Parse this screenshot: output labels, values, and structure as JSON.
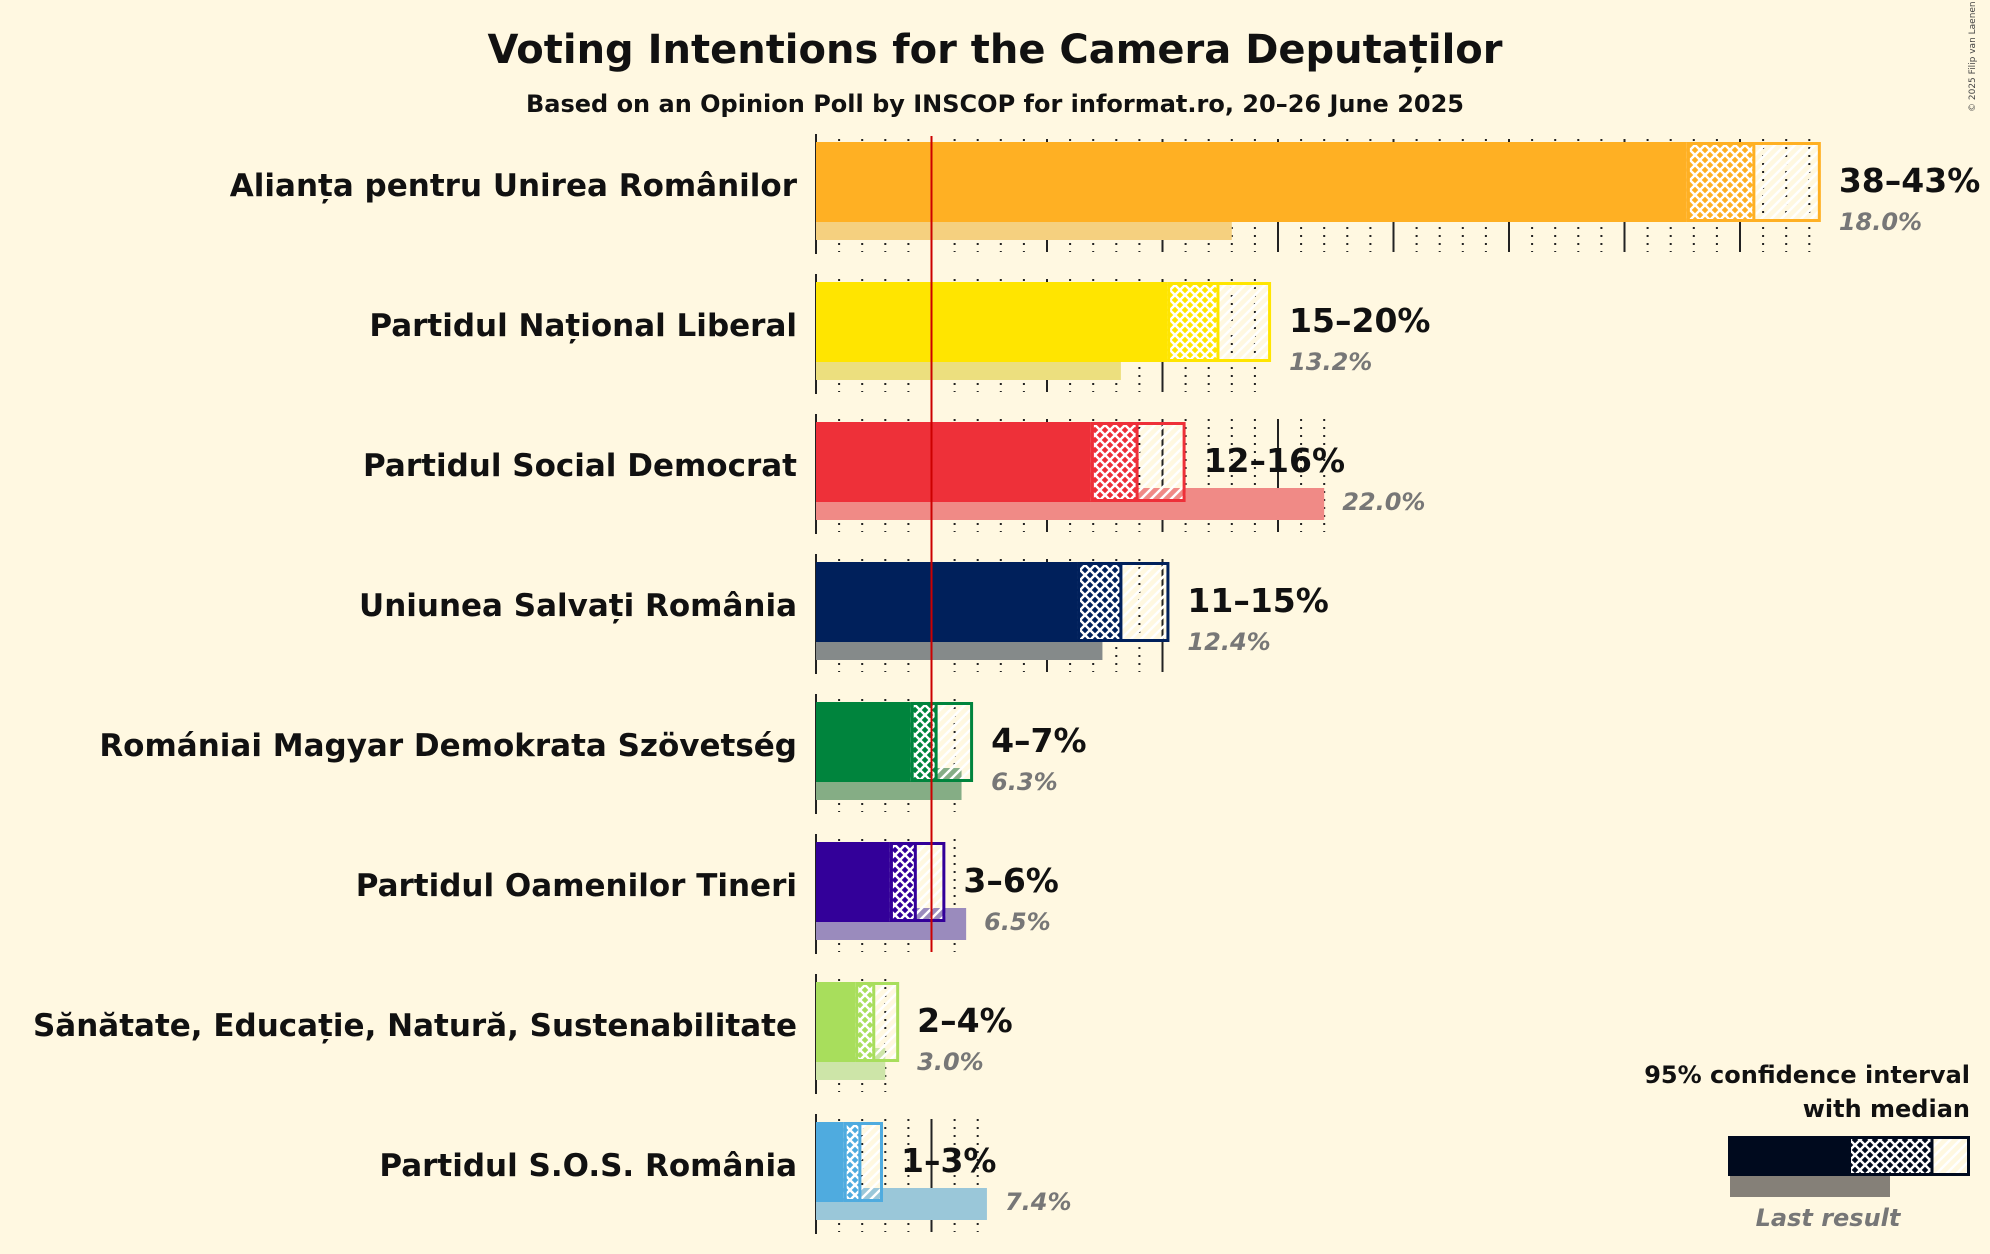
{
  "copyright": "© 2025 Filip van Laenen",
  "chart_data": {
    "type": "bar",
    "orientation": "horizontal",
    "title": "Voting Intentions for the Camera Deputaților",
    "subtitle": "Based on an Opinion Poll by INSCOP for informat.ro, 20–26 June 2025",
    "xlim": [
      0,
      45
    ],
    "threshold": 5,
    "threshold_color": "#cc0000",
    "parties": [
      {
        "name": "Alianța pentru Unirea Românilor",
        "color": "#ffb023",
        "last_color": "#f5d07f",
        "ci_low": 37.7,
        "median": 40.6,
        "ci_high": 43.5,
        "range_label": "38–43%",
        "last_result": 18.0,
        "last_label": "18.0%"
      },
      {
        "name": "Partidul Național Liberal",
        "color": "#ffe500",
        "last_color": "#ecdf7e",
        "ci_low": 15.2,
        "median": 17.4,
        "ci_high": 19.7,
        "range_label": "15–20%",
        "last_result": 13.2,
        "last_label": "13.2%"
      },
      {
        "name": "Partidul Social Democrat",
        "color": "#ee3039",
        "last_color": "#f08a86",
        "ci_low": 11.9,
        "median": 13.9,
        "ci_high": 16.0,
        "range_label": "12–16%",
        "last_result": 22.0,
        "last_label": "22.0%"
      },
      {
        "name": "Uniunea Salvați România",
        "color": "#00205b",
        "last_color": "#858a8a",
        "ci_low": 11.3,
        "median": 13.2,
        "ci_high": 15.3,
        "range_label": "11–15%",
        "last_result": 12.4,
        "last_label": "12.4%"
      },
      {
        "name": "Romániai Magyar Demokrata Szövetség",
        "color": "#00843d",
        "last_color": "#85ad85",
        "ci_low": 4.1,
        "median": 5.2,
        "ci_high": 6.8,
        "range_label": "4–7%",
        "last_result": 6.3,
        "last_label": "6.3%"
      },
      {
        "name": "Partidul Oamenilor Tineri",
        "color": "#330099",
        "last_color": "#9a8bbd",
        "ci_low": 3.2,
        "median": 4.3,
        "ci_high": 5.6,
        "range_label": "3–6%",
        "last_result": 6.5,
        "last_label": "6.5%"
      },
      {
        "name": "Sănătate, Educație, Natură, Sustenabilitate",
        "color": "#a8de5c",
        "last_color": "#cde5a8",
        "ci_low": 1.7,
        "median": 2.5,
        "ci_high": 3.6,
        "range_label": "2–4%",
        "last_result": 3.0,
        "last_label": "3.0%"
      },
      {
        "name": "Partidul S.O.S. România",
        "color": "#4fabdf",
        "last_color": "#9ac7d9",
        "ci_low": 1.2,
        "median": 1.9,
        "ci_high": 2.9,
        "range_label": "1–3%",
        "last_result": 7.4,
        "last_label": "7.4%"
      }
    ],
    "legend": {
      "line1": "95% confidence interval",
      "line2": "with median",
      "last": "Last result",
      "color": "#000a1e",
      "last_color": "#858078"
    }
  }
}
